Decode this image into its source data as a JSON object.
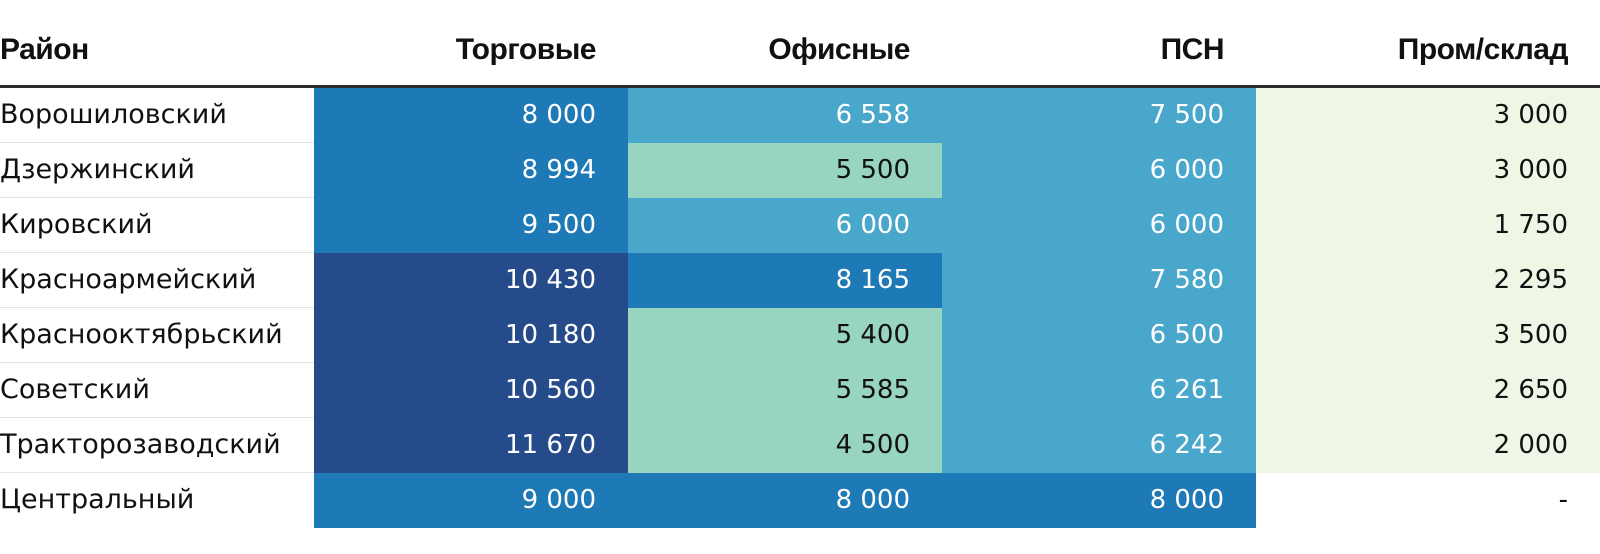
{
  "colors": {
    "dark": "#264b8b",
    "mid": "#1e79b7",
    "light_blue": "#4aa7cc",
    "teal": "#98d5c0",
    "pale_green": "#eef7e6",
    "none": "#ffffff",
    "text_dark": "#111111",
    "text_light": "#ffffff"
  },
  "chart_data": {
    "type": "table",
    "columns": [
      "Район",
      "Торговые",
      "Офисные",
      "ПСН",
      "Пром/склад"
    ],
    "rows": [
      {
        "district": "Ворошиловский",
        "values": [
          "8 000",
          "6 558",
          "7 500",
          "3 000"
        ],
        "colors": [
          "mid",
          "light_blue",
          "light_blue",
          "pale_green"
        ]
      },
      {
        "district": "Дзержинский",
        "values": [
          "8 994",
          "5 500",
          "6 000",
          "3 000"
        ],
        "colors": [
          "mid",
          "teal",
          "light_blue",
          "pale_green"
        ]
      },
      {
        "district": "Кировский",
        "values": [
          "9 500",
          "6 000",
          "6 000",
          "1 750"
        ],
        "colors": [
          "mid",
          "light_blue",
          "light_blue",
          "pale_green"
        ]
      },
      {
        "district": "Красноармейский",
        "values": [
          "10 430",
          "8 165",
          "7 580",
          "2 295"
        ],
        "colors": [
          "dark",
          "mid",
          "light_blue",
          "pale_green"
        ]
      },
      {
        "district": "Краснооктябрьский",
        "values": [
          "10 180",
          "5 400",
          "6 500",
          "3 500"
        ],
        "colors": [
          "dark",
          "teal",
          "light_blue",
          "pale_green"
        ]
      },
      {
        "district": "Советский",
        "values": [
          "10 560",
          "5 585",
          "6 261",
          "2 650"
        ],
        "colors": [
          "dark",
          "teal",
          "light_blue",
          "pale_green"
        ]
      },
      {
        "district": "Тракторозаводский",
        "values": [
          "11 670",
          "4 500",
          "6 242",
          "2 000"
        ],
        "colors": [
          "dark",
          "teal",
          "light_blue",
          "pale_green"
        ]
      },
      {
        "district": "Центральный",
        "values": [
          "9 000",
          "8 000",
          "8 000",
          "-"
        ],
        "colors": [
          "mid",
          "mid",
          "mid",
          "none"
        ]
      }
    ]
  }
}
